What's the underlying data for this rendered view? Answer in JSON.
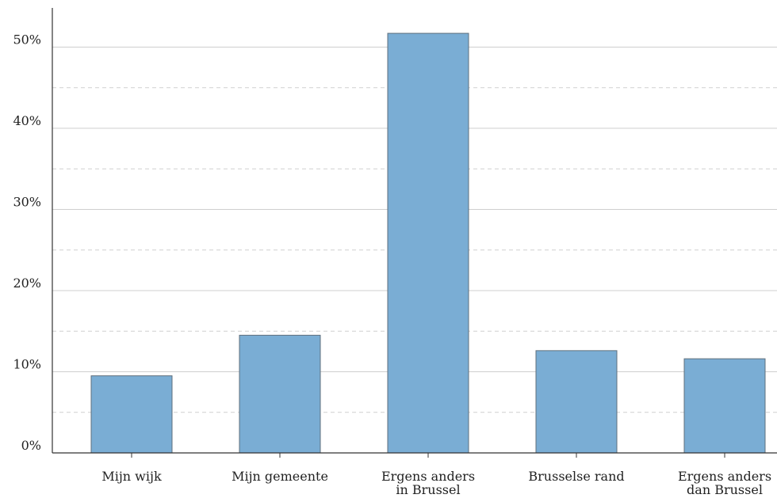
{
  "chart_data": {
    "type": "bar",
    "title": "",
    "xlabel": "",
    "ylabel": "",
    "categories": [
      [
        "Mijn wijk"
      ],
      [
        "Mijn gemeente"
      ],
      [
        "Ergens anders",
        "in Brussel"
      ],
      [
        "Brusselse rand"
      ],
      [
        "Ergens anders",
        "dan Brussel"
      ]
    ],
    "values": [
      9.5,
      14.5,
      51.7,
      12.6,
      11.6
    ],
    "ylim": [
      0,
      55
    ],
    "yticks": [
      0,
      10,
      20,
      30,
      40,
      50
    ],
    "ytick_labels": [
      "0%",
      "10%",
      "20%",
      "30%",
      "40%",
      "50%"
    ],
    "minor_gridlines": [
      5,
      15,
      25,
      35,
      45
    ],
    "grid": true,
    "legend": "none",
    "bar_color": "#7aadd4"
  }
}
